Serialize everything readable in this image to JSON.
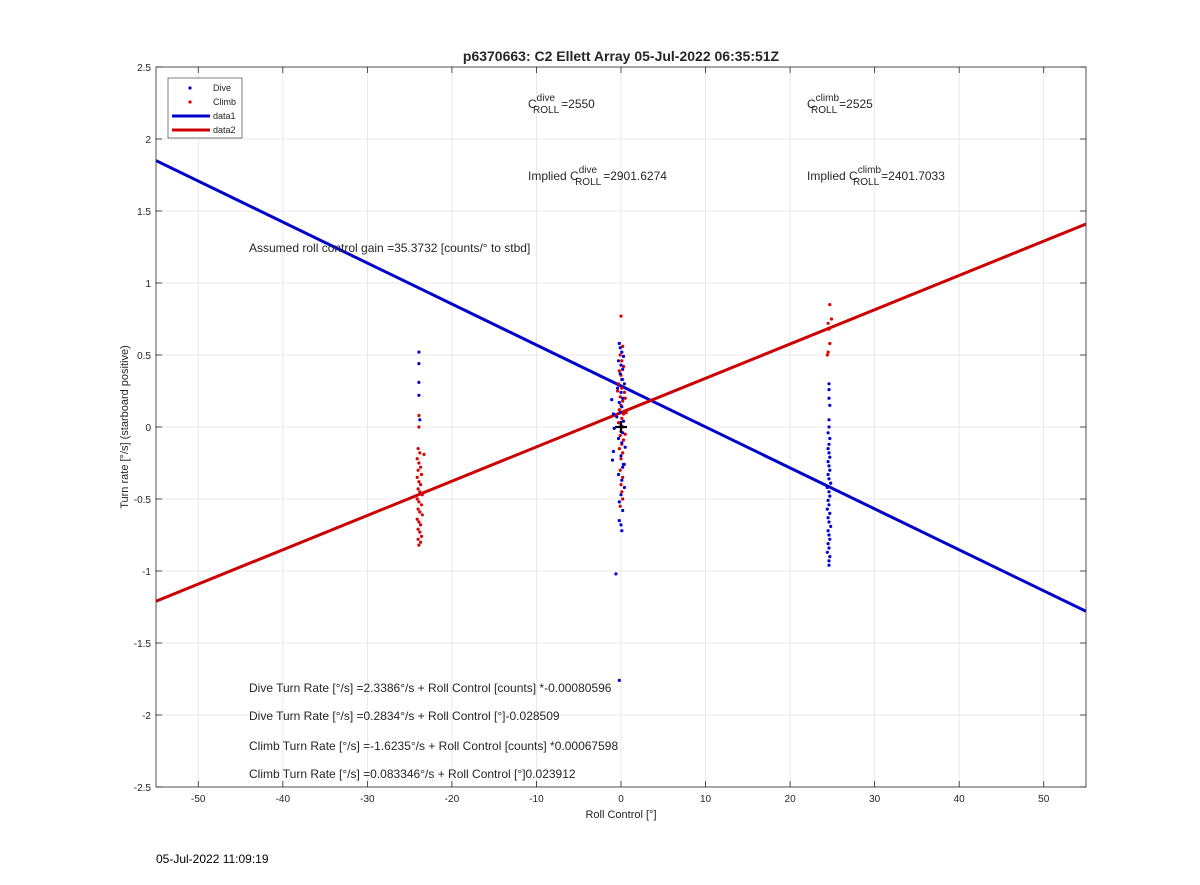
{
  "chart_data": {
    "type": "scatter",
    "title": "p6370663: C2 Ellett Array 05-Jul-2022 06:35:51Z",
    "xlabel": "Roll Control [°]",
    "ylabel": "Turn rate [°/s] (starboard positive)",
    "xlim": [
      -55,
      55
    ],
    "ylim": [
      -2.5,
      2.5
    ],
    "x_ticks": [
      -50,
      -40,
      -30,
      -20,
      -10,
      0,
      10,
      20,
      30,
      40,
      50
    ],
    "y_ticks": [
      -2.5,
      -2,
      -1.5,
      -1,
      -0.5,
      0,
      0.5,
      1,
      1.5,
      2,
      2.5
    ],
    "grid": true,
    "legend_position": "top-left",
    "series": [
      {
        "name": "Dive",
        "kind": "points",
        "color": "#0000dd",
        "points": [
          [
            -23.9,
            0.52
          ],
          [
            -23.9,
            0.44
          ],
          [
            -23.9,
            0.31
          ],
          [
            -23.9,
            0.22
          ],
          [
            -23.8,
            0.05
          ],
          [
            -0.2,
            0.58
          ],
          [
            -0.1,
            0.55
          ],
          [
            0.1,
            0.52
          ],
          [
            0.3,
            0.49
          ],
          [
            -0.3,
            0.46
          ],
          [
            0.0,
            0.43
          ],
          [
            0.2,
            0.4
          ],
          [
            -0.1,
            0.37
          ],
          [
            0.1,
            0.33
          ],
          [
            0.4,
            0.3
          ],
          [
            -0.4,
            0.27
          ],
          [
            0.0,
            0.24
          ],
          [
            0.2,
            0.2
          ],
          [
            -0.2,
            0.17
          ],
          [
            0.1,
            0.14
          ],
          [
            -0.1,
            0.1
          ],
          [
            -0.5,
            0.07
          ],
          [
            0.3,
            0.04
          ],
          [
            0.0,
            0.01
          ],
          [
            -0.8,
            -0.01
          ],
          [
            0.2,
            -0.04
          ],
          [
            -0.3,
            -0.08
          ],
          [
            0.1,
            -0.11
          ],
          [
            0.5,
            -0.14
          ],
          [
            -0.9,
            -0.17
          ],
          [
            0.0,
            -0.2
          ],
          [
            -1.0,
            -0.23
          ],
          [
            0.2,
            -0.28
          ],
          [
            -0.3,
            -0.33
          ],
          [
            0.1,
            -0.37
          ],
          [
            0.4,
            -0.42
          ],
          [
            0.0,
            -0.47
          ],
          [
            -0.2,
            -0.52
          ],
          [
            0.2,
            -0.58
          ],
          [
            -0.2,
            -0.65
          ],
          [
            0.0,
            -0.68
          ],
          [
            0.1,
            -0.72
          ],
          [
            -0.6,
            -1.02
          ],
          [
            -0.2,
            -1.76
          ],
          [
            -1.1,
            0.19
          ],
          [
            -0.9,
            0.09
          ],
          [
            0.3,
            -0.26
          ],
          [
            24.6,
            0.3
          ],
          [
            24.6,
            0.26
          ],
          [
            24.6,
            0.2
          ],
          [
            24.7,
            0.15
          ],
          [
            24.6,
            0.05
          ],
          [
            24.6,
            0.0
          ],
          [
            24.5,
            -0.04
          ],
          [
            24.7,
            -0.08
          ],
          [
            24.6,
            -0.12
          ],
          [
            24.5,
            -0.15
          ],
          [
            24.6,
            -0.18
          ],
          [
            24.7,
            -0.21
          ],
          [
            24.5,
            -0.24
          ],
          [
            24.6,
            -0.27
          ],
          [
            24.7,
            -0.3
          ],
          [
            24.5,
            -0.33
          ],
          [
            24.6,
            -0.36
          ],
          [
            24.8,
            -0.39
          ],
          [
            24.4,
            -0.42
          ],
          [
            24.6,
            -0.45
          ],
          [
            24.7,
            -0.48
          ],
          [
            24.5,
            -0.51
          ],
          [
            24.6,
            -0.54
          ],
          [
            24.4,
            -0.57
          ],
          [
            24.7,
            -0.6
          ],
          [
            24.5,
            -0.63
          ],
          [
            24.6,
            -0.66
          ],
          [
            24.8,
            -0.69
          ],
          [
            24.5,
            -0.72
          ],
          [
            24.6,
            -0.75
          ],
          [
            24.7,
            -0.78
          ],
          [
            24.5,
            -0.81
          ],
          [
            24.6,
            -0.84
          ],
          [
            24.4,
            -0.87
          ],
          [
            24.7,
            -0.9
          ],
          [
            24.6,
            -0.93
          ],
          [
            24.6,
            -0.96
          ]
        ]
      },
      {
        "name": "Climb",
        "kind": "points",
        "color": "#dd0000",
        "points": [
          [
            -23.9,
            0.08
          ],
          [
            -23.9,
            0.0
          ],
          [
            -24.0,
            -0.15
          ],
          [
            -23.8,
            -0.18
          ],
          [
            -23.3,
            -0.19
          ],
          [
            -24.1,
            -0.22
          ],
          [
            -23.9,
            -0.25
          ],
          [
            -23.7,
            -0.28
          ],
          [
            -24.0,
            -0.3
          ],
          [
            -23.6,
            -0.33
          ],
          [
            -24.1,
            -0.35
          ],
          [
            -23.9,
            -0.38
          ],
          [
            -23.7,
            -0.4
          ],
          [
            -24.0,
            -0.43
          ],
          [
            -23.8,
            -0.45
          ],
          [
            -23.5,
            -0.47
          ],
          [
            -24.1,
            -0.5
          ],
          [
            -23.9,
            -0.52
          ],
          [
            -23.6,
            -0.54
          ],
          [
            -24.0,
            -0.57
          ],
          [
            -23.8,
            -0.59
          ],
          [
            -23.5,
            -0.61
          ],
          [
            -24.1,
            -0.64
          ],
          [
            -23.9,
            -0.66
          ],
          [
            -23.7,
            -0.68
          ],
          [
            -24.0,
            -0.71
          ],
          [
            -23.8,
            -0.73
          ],
          [
            -23.6,
            -0.76
          ],
          [
            -24.0,
            -0.78
          ],
          [
            -23.7,
            -0.8
          ],
          [
            -23.9,
            -0.82
          ],
          [
            0.0,
            0.77
          ],
          [
            0.2,
            0.56
          ],
          [
            -0.1,
            0.5
          ],
          [
            0.1,
            0.46
          ],
          [
            0.3,
            0.42
          ],
          [
            -0.2,
            0.39
          ],
          [
            0.0,
            0.36
          ],
          [
            0.2,
            0.33
          ],
          [
            -0.3,
            0.3
          ],
          [
            0.1,
            0.27
          ],
          [
            0.4,
            0.24
          ],
          [
            -0.1,
            0.21
          ],
          [
            0.2,
            0.18
          ],
          [
            0.0,
            0.15
          ],
          [
            -0.2,
            0.12
          ],
          [
            0.3,
            0.09
          ],
          [
            0.1,
            0.06
          ],
          [
            -0.3,
            0.03
          ],
          [
            0.2,
            0.0
          ],
          [
            0.0,
            -0.03
          ],
          [
            -0.1,
            -0.06
          ],
          [
            0.3,
            -0.09
          ],
          [
            0.1,
            -0.12
          ],
          [
            -0.2,
            -0.15
          ],
          [
            0.2,
            -0.18
          ],
          [
            0.0,
            -0.22
          ],
          [
            0.4,
            -0.26
          ],
          [
            -0.1,
            -0.3
          ],
          [
            0.2,
            -0.35
          ],
          [
            0.0,
            -0.4
          ],
          [
            0.1,
            -0.45
          ],
          [
            0.2,
            -0.5
          ],
          [
            -0.1,
            -0.55
          ],
          [
            0.5,
            0.2
          ],
          [
            0.6,
            0.1
          ],
          [
            -0.4,
            0.25
          ],
          [
            0.5,
            -0.05
          ],
          [
            24.7,
            0.85
          ],
          [
            24.9,
            0.75
          ],
          [
            24.5,
            0.72
          ],
          [
            24.6,
            0.68
          ],
          [
            24.7,
            0.58
          ],
          [
            24.5,
            0.52
          ],
          [
            24.4,
            0.5
          ]
        ]
      },
      {
        "name": "data1",
        "kind": "line",
        "color": "#0000cc",
        "points": [
          [
            -55,
            1.85
          ],
          [
            55,
            -1.28
          ]
        ]
      },
      {
        "name": "data2",
        "kind": "line",
        "color": "#cc0000",
        "points": [
          [
            -55,
            -1.21
          ],
          [
            55,
            1.41
          ]
        ]
      }
    ],
    "marker": {
      "x": 0,
      "y": 0,
      "symbol": "+"
    },
    "annotations": {
      "c_dive": "=2550",
      "c_climb": "=2525",
      "implied_dive": "=2901.6274",
      "implied_climb": "=2401.7033",
      "c_letter": "C",
      "roll_sub": "ROLL",
      "dive_sup": "dive",
      "climb_sup": "climb",
      "implied_prefix": "Implied ",
      "gain": "Assumed roll control gain =35.3732 [counts/° to stbd]",
      "eq1": "Dive Turn Rate [°/s] =2.3386°/s + Roll Control [counts] *-0.00080596",
      "eq2": "Dive Turn Rate [°/s] =0.2834°/s + Roll Control [°]-0.028509",
      "eq3": "Climb Turn Rate [°/s] =-1.6235°/s + Roll Control [counts] *0.00067598",
      "eq4": "Climb Turn Rate [°/s] =0.083346°/s + Roll Control [°]0.023912"
    }
  },
  "footer_timestamp": "05-Jul-2022 11:09:19"
}
